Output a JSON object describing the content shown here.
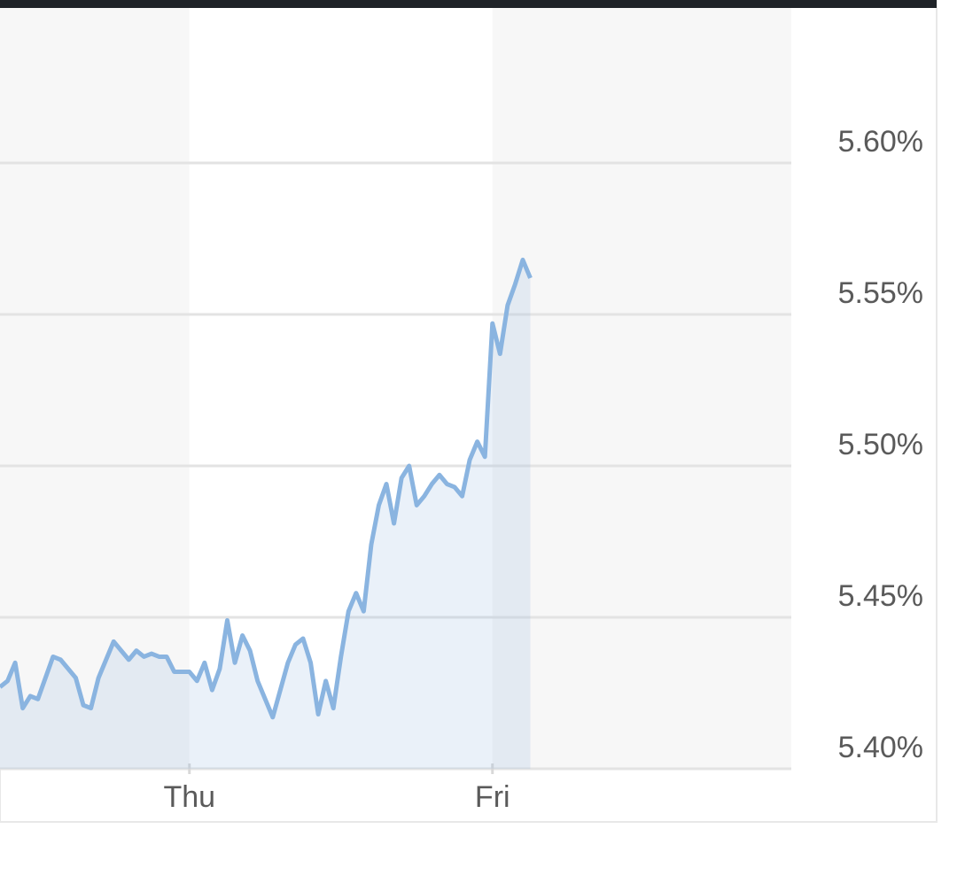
{
  "chart_data": {
    "type": "line",
    "categories": [
      null,
      null,
      null,
      null,
      null,
      null,
      null,
      null,
      null,
      null,
      null,
      null,
      null,
      null,
      null,
      null,
      null,
      null,
      null,
      null,
      null,
      null,
      null,
      null,
      null,
      "Thu",
      null,
      null,
      null,
      null,
      null,
      null,
      null,
      null,
      null,
      null,
      null,
      null,
      null,
      null,
      null,
      null,
      null,
      null,
      null,
      null,
      null,
      null,
      null,
      null,
      null,
      null,
      null,
      null,
      null,
      null,
      null,
      null,
      null,
      null,
      null,
      null,
      null,
      null,
      null,
      "Fri",
      null,
      null,
      null,
      null,
      null
    ],
    "series": [
      {
        "color": "#8ab4e0",
        "values": [
          5.427,
          5.429,
          5.435,
          5.42,
          5.424,
          5.423,
          5.43,
          5.437,
          5.436,
          5.433,
          5.43,
          5.421,
          5.42,
          5.43,
          5.436,
          5.442,
          5.439,
          5.436,
          5.439,
          5.437,
          5.438,
          5.437,
          5.437,
          5.432,
          5.432,
          5.432,
          5.429,
          5.435,
          5.426,
          5.433,
          5.449,
          5.435,
          5.444,
          5.439,
          5.429,
          5.423,
          5.417,
          5.426,
          5.435,
          5.441,
          5.443,
          5.435,
          5.418,
          5.429,
          5.42,
          5.437,
          5.452,
          5.458,
          5.452,
          5.474,
          5.487,
          5.494,
          5.481,
          5.496,
          5.5,
          5.487,
          5.49,
          5.494,
          5.497,
          5.494,
          5.493,
          5.49,
          5.502,
          5.508,
          5.503,
          5.547,
          5.537,
          5.553,
          5.56,
          5.568,
          5.562
        ]
      }
    ],
    "ylim": [
      5.4,
      5.65
    ],
    "yticks": [
      {
        "value": 5.4,
        "label": "5.40%"
      },
      {
        "value": 5.45,
        "label": "5.45%"
      },
      {
        "value": 5.5,
        "label": "5.50%"
      },
      {
        "value": 5.55,
        "label": "5.55%"
      },
      {
        "value": 5.6,
        "label": "5.60%"
      }
    ],
    "grid": true
  }
}
